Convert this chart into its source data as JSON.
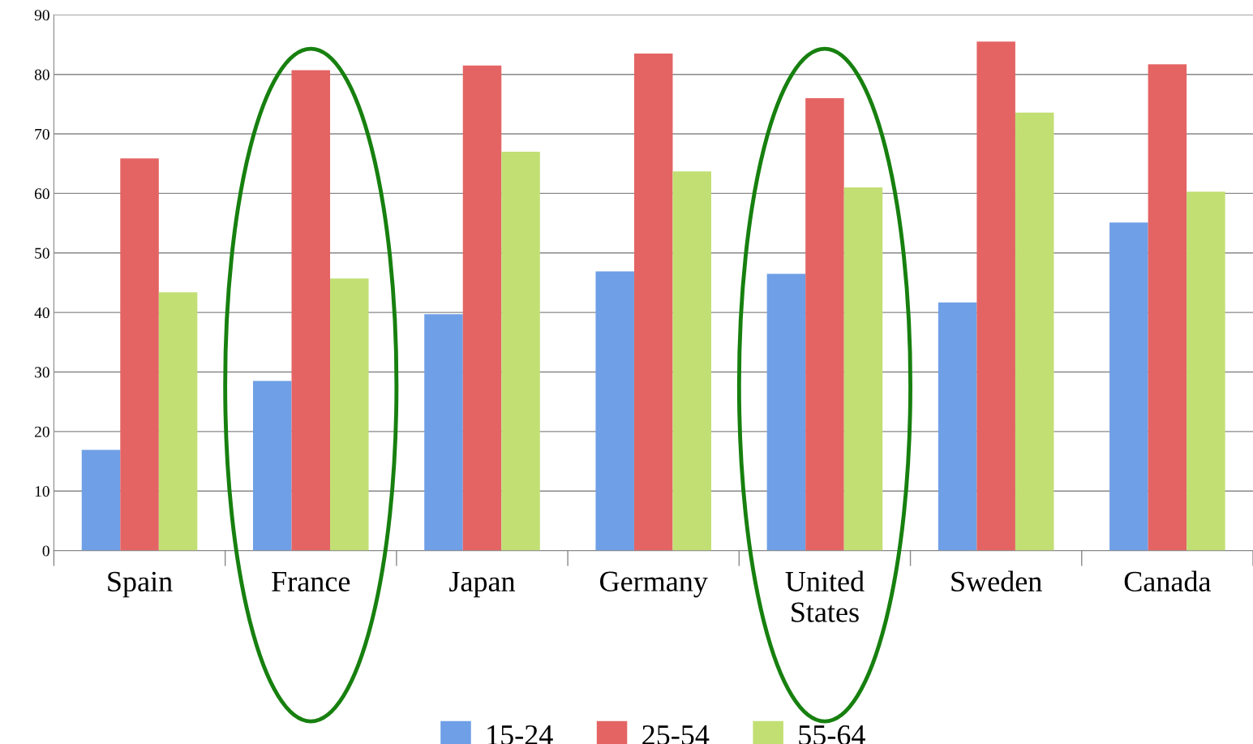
{
  "chart_data": {
    "type": "bar",
    "categories": [
      "Spain",
      "France",
      "Japan",
      "Germany",
      "United States",
      "Sweden",
      "Canada"
    ],
    "series": [
      {
        "name": "15-24",
        "color": "#6f9fe6",
        "values": [
          16.9,
          28.5,
          39.7,
          46.9,
          46.5,
          41.7,
          55.1
        ]
      },
      {
        "name": "25-54",
        "color": "#e46464",
        "values": [
          65.9,
          80.7,
          81.5,
          83.5,
          76.0,
          85.5,
          81.7
        ]
      },
      {
        "name": "55-64",
        "color": "#c2df74",
        "values": [
          43.4,
          45.7,
          67.0,
          63.7,
          61.0,
          73.6,
          60.3
        ]
      }
    ],
    "ylim": [
      0,
      90
    ],
    "yticks": [
      0,
      10,
      20,
      30,
      40,
      50,
      60,
      70,
      80,
      90
    ],
    "grid": "y",
    "legend": "bottom"
  }
}
